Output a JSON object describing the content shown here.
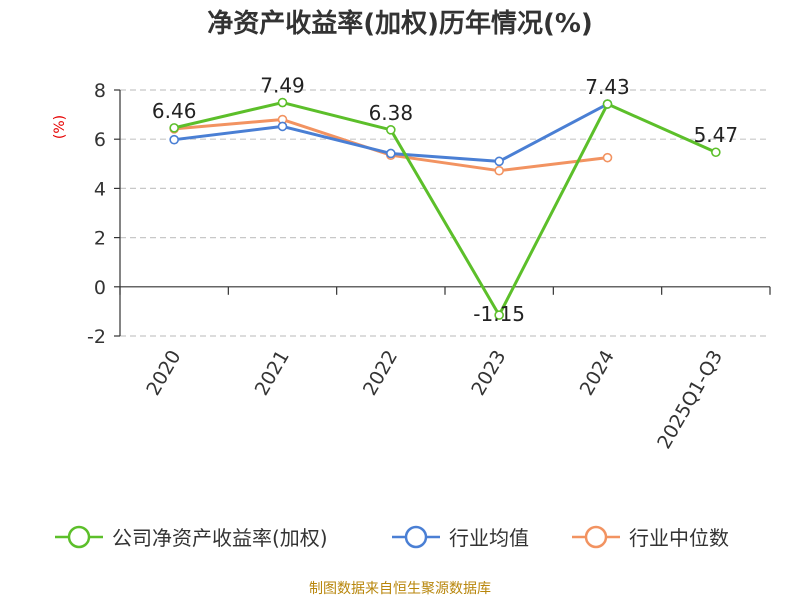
{
  "chart_data": {
    "type": "line",
    "title": "净资产收益率(加权)历年情况(%)",
    "ylabel": "(%)",
    "categories": [
      "2020",
      "2021",
      "2022",
      "2023",
      "2024",
      "2025Q1-Q3"
    ],
    "ylim": [
      -2,
      8
    ],
    "yticks": [
      -2,
      0,
      2,
      4,
      6,
      8
    ],
    "grid": true,
    "legend_position": "bottom",
    "series": [
      {
        "name": "公司净资产收益率(加权)",
        "color": "#5cbf2a",
        "values": [
          6.46,
          7.49,
          6.38,
          -1.15,
          7.43,
          5.47
        ],
        "labels": [
          "6.46",
          "7.49",
          "6.38",
          "-1.15",
          "7.43",
          "5.47"
        ]
      },
      {
        "name": "行业均值",
        "color": "#4a7fd4",
        "values": [
          5.98,
          6.52,
          5.42,
          5.1,
          7.43,
          null
        ]
      },
      {
        "name": "行业中位数",
        "color": "#f29361",
        "values": [
          6.42,
          6.8,
          5.35,
          4.72,
          5.25,
          null
        ]
      }
    ]
  },
  "footer": {
    "source": "制图数据来自恒生聚源数据库"
  }
}
